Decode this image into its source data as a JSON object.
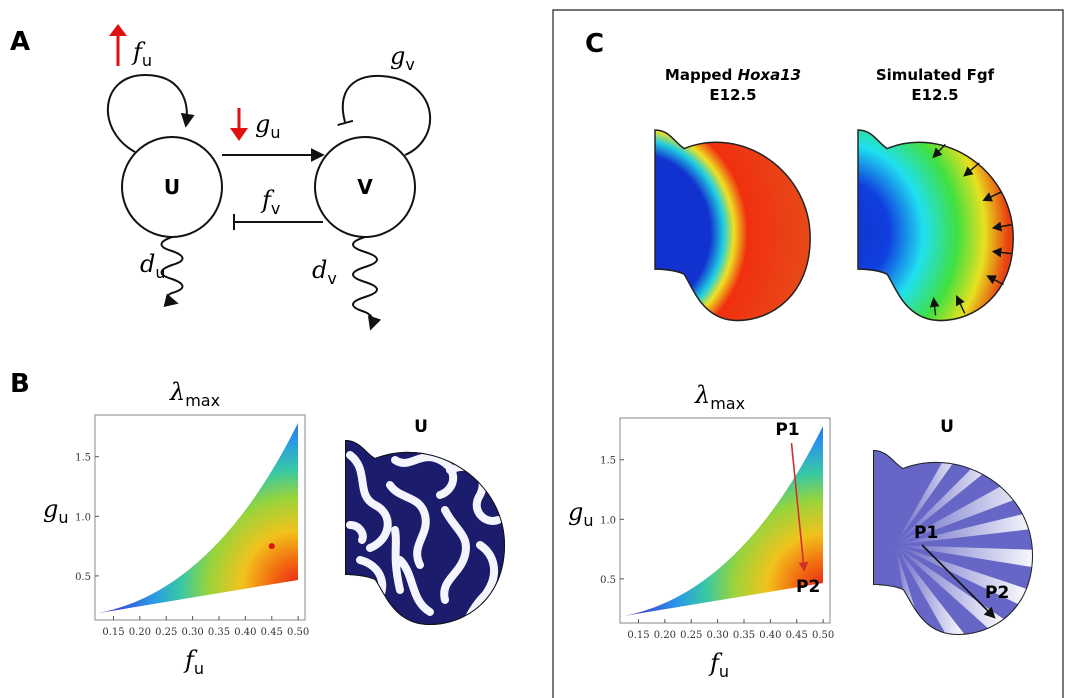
{
  "panel_a": {
    "label": "A",
    "node_u": "U",
    "node_v": "V",
    "f_u": {
      "symbol": "f",
      "sub": "u"
    },
    "g_u": {
      "symbol": "g",
      "sub": "u"
    },
    "f_v": {
      "symbol": "f",
      "sub": "v"
    },
    "g_v": {
      "symbol": "g",
      "sub": "v"
    },
    "d_u": {
      "symbol": "d",
      "sub": "u"
    },
    "d_v": {
      "symbol": "d",
      "sub": "v"
    }
  },
  "panel_b": {
    "label": "B",
    "pattern_label": "U",
    "plot": {
      "title": {
        "symbol": "λ",
        "sub": "max"
      },
      "x_label": {
        "symbol": "f",
        "sub": "u"
      },
      "y_label": {
        "symbol": "g",
        "sub": "u"
      },
      "xlim": [
        0.115,
        0.513
      ],
      "ylim": [
        0.13,
        1.85
      ],
      "xticks": [
        0.15,
        {
          "value": 0.2,
          "label": "0.20"
        },
        0.25,
        {
          "value": 0.3,
          "label": "0.30"
        },
        0.35,
        {
          "value": 0.4,
          "label": "0.40"
        },
        0.45,
        {
          "value": 0.5,
          "label": "0.50"
        }
      ],
      "yticks": [
        0.5,
        {
          "value": 1,
          "label": "1.0"
        },
        1.5
      ],
      "points": [
        {
          "x": 0.45,
          "y": 0.75,
          "color": "#e01010"
        }
      ]
    }
  },
  "panel_c": {
    "label": "C",
    "heatmaps": [
      {
        "title": [
          "Mapped ",
          "Hoxa13"
        ],
        "stage": "E12.5"
      },
      {
        "title": [
          "Simulated Fgf"
        ],
        "stage": "E12.5"
      }
    ],
    "plot": {
      "title": {
        "symbol": "λ",
        "sub": "max"
      },
      "x_label": {
        "symbol": "f",
        "sub": "u"
      },
      "y_label": {
        "symbol": "g",
        "sub": "u"
      },
      "xlim": [
        0.115,
        0.513
      ],
      "ylim": [
        0.13,
        1.85
      ],
      "xticks": [
        0.15,
        {
          "value": 0.2,
          "label": "0.20"
        },
        0.25,
        {
          "value": 0.3,
          "label": "0.30"
        },
        0.35,
        {
          "value": 0.4,
          "label": "0.40"
        },
        0.45,
        {
          "value": 0.5,
          "label": "0.50"
        }
      ],
      "yticks": [
        0.5,
        {
          "value": 1,
          "label": "1.0"
        },
        1.5
      ],
      "points": [
        {
          "label": "P1",
          "x": 0.44,
          "y": 1.64
        },
        {
          "label": "P2",
          "x": 0.464,
          "y": 0.575
        }
      ],
      "arrow_color": "#d32f2f"
    },
    "pattern": {
      "label": "U",
      "points": [
        "P1",
        "P2"
      ]
    }
  }
}
